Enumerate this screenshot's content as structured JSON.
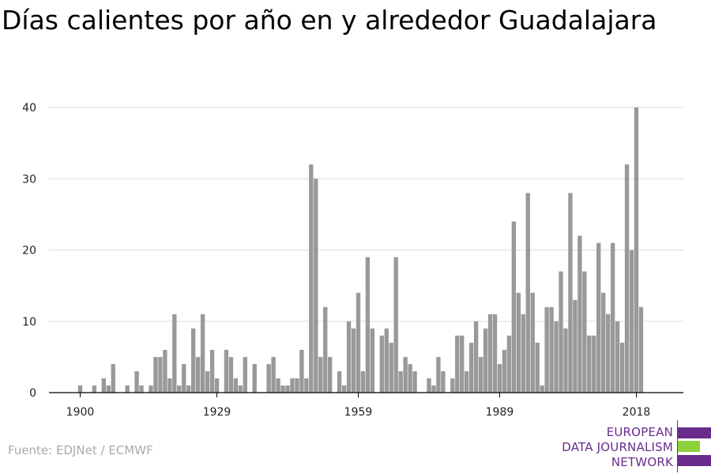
{
  "title": "Días calientes por año en y alrededor Guadalajara",
  "source": "Fuente: EDJNet / ECMWF",
  "logo": {
    "lines": [
      "EUROPEAN",
      "DATA JOURNALISM",
      "NETWORK"
    ],
    "colors": {
      "purple": "#6a2c8c",
      "green": "#8cd23c"
    }
  },
  "colors": {
    "bar": "#999999",
    "grid": "#dddddd",
    "axis": "#000000"
  },
  "chart_data": {
    "type": "bar",
    "title": "Días calientes por año en y alrededor Guadalajara",
    "xlabel": "",
    "ylabel": "",
    "ylim": [
      0,
      40
    ],
    "yticks": [
      0,
      10,
      20,
      30,
      40
    ],
    "xticks": [
      1900,
      1929,
      1959,
      1989,
      2018
    ],
    "grid": true,
    "categories": [
      1900,
      1901,
      1902,
      1903,
      1904,
      1905,
      1906,
      1907,
      1908,
      1909,
      1910,
      1911,
      1912,
      1913,
      1914,
      1915,
      1916,
      1917,
      1918,
      1919,
      1920,
      1921,
      1922,
      1923,
      1924,
      1925,
      1926,
      1927,
      1928,
      1929,
      1930,
      1931,
      1932,
      1933,
      1934,
      1935,
      1936,
      1937,
      1938,
      1939,
      1940,
      1941,
      1942,
      1943,
      1944,
      1945,
      1946,
      1947,
      1948,
      1949,
      1950,
      1951,
      1952,
      1953,
      1954,
      1955,
      1956,
      1957,
      1958,
      1959,
      1960,
      1961,
      1962,
      1963,
      1964,
      1965,
      1966,
      1967,
      1968,
      1969,
      1970,
      1971,
      1972,
      1973,
      1974,
      1975,
      1976,
      1977,
      1978,
      1979,
      1980,
      1981,
      1982,
      1983,
      1984,
      1985,
      1986,
      1987,
      1988,
      1989,
      1990,
      1991,
      1992,
      1993,
      1994,
      1995,
      1996,
      1997,
      1998,
      1999,
      2000,
      2001,
      2002,
      2003,
      2004,
      2005,
      2006,
      2007,
      2008,
      2009,
      2010,
      2011,
      2012,
      2013,
      2014,
      2015,
      2016,
      2017,
      2018,
      2019
    ],
    "values": [
      1,
      0,
      0,
      1,
      0,
      2,
      1,
      4,
      0,
      0,
      1,
      0,
      3,
      1,
      0,
      1,
      5,
      5,
      6,
      2,
      11,
      1,
      4,
      1,
      9,
      5,
      11,
      3,
      6,
      2,
      0,
      6,
      5,
      2,
      1,
      5,
      0,
      4,
      0,
      0,
      4,
      5,
      2,
      1,
      1,
      2,
      2,
      6,
      2,
      32,
      30,
      5,
      12,
      5,
      0,
      3,
      1,
      10,
      9,
      14,
      3,
      19,
      9,
      0,
      8,
      9,
      7,
      19,
      3,
      5,
      4,
      3,
      0,
      0,
      2,
      1,
      5,
      3,
      0,
      2,
      8,
      8,
      3,
      7,
      10,
      5,
      9,
      11,
      11,
      4,
      6,
      8,
      24,
      14,
      11,
      28,
      14,
      7,
      1,
      12,
      12,
      10,
      17,
      9,
      28,
      13,
      22,
      17,
      8,
      8,
      21,
      14,
      11,
      21,
      10,
      7,
      32,
      20,
      40,
      12
    ]
  }
}
